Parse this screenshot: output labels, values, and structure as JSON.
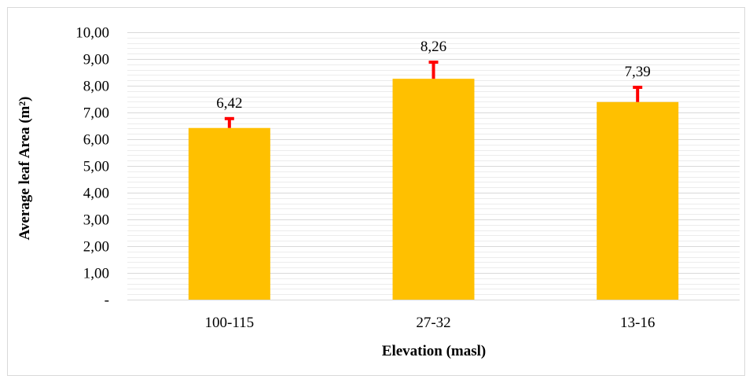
{
  "chart_data": {
    "type": "bar",
    "title": "",
    "xlabel": "Elevation (masl)",
    "ylabel": "Average leaf Area (m²)",
    "categories": [
      "100-115",
      "27-32",
      "13-16"
    ],
    "values": [
      6.42,
      8.26,
      7.39
    ],
    "data_labels": [
      "6,42",
      "8,26",
      "7,39"
    ],
    "error_plus": [
      0.38,
      0.65,
      0.58
    ],
    "ylim": [
      0,
      10
    ],
    "y_ticks": [
      0,
      1,
      2,
      3,
      4,
      5,
      6,
      7,
      8,
      9,
      10
    ],
    "y_tick_labels": [
      "-",
      "1,00",
      "2,00",
      "3,00",
      "4,00",
      "5,00",
      "6,00",
      "7,00",
      "8,00",
      "9,00",
      "10,00"
    ],
    "grid": true,
    "minor_grid": true,
    "legend": "none",
    "colors": {
      "bar": "#ffc000",
      "error_bar": "#ff0000",
      "grid": "#d9d9d9",
      "minor_grid": "#ececec",
      "frame": "#d9d9d9"
    }
  }
}
